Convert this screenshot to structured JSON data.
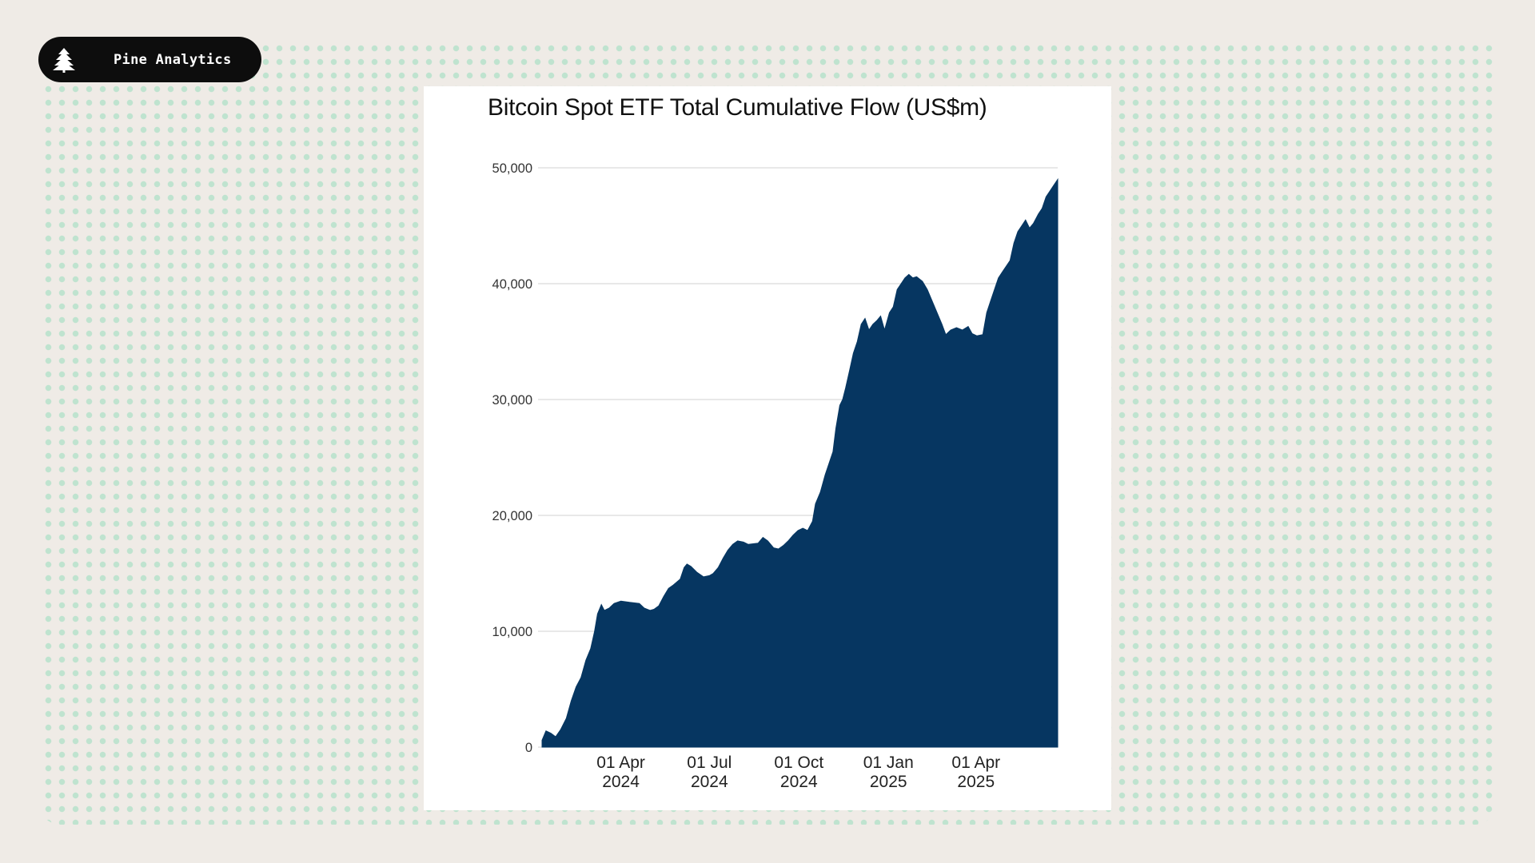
{
  "brand": {
    "name": "Pine Analytics",
    "icon": "pine-tree-icon",
    "background_color": "#0d0d0d",
    "text_color": "#ffffff"
  },
  "background": {
    "base_color": "#efebe6",
    "dot_color": "#bfe3cf"
  },
  "chart_data": {
    "type": "area",
    "title": "Bitcoin Spot ETF Total Cumulative Flow (US$m)",
    "xlabel": "",
    "ylabel": "",
    "series": [
      {
        "color": "#063661",
        "points": [
          [
            "2024-01-11",
            600
          ],
          [
            "2024-01-15",
            1400
          ],
          [
            "2024-01-20",
            1200
          ],
          [
            "2024-01-25",
            900
          ],
          [
            "2024-01-30",
            1500
          ],
          [
            "2024-02-05",
            2500
          ],
          [
            "2024-02-10",
            4000
          ],
          [
            "2024-02-15",
            5200
          ],
          [
            "2024-02-20",
            6000
          ],
          [
            "2024-02-25",
            7500
          ],
          [
            "2024-03-01",
            8500
          ],
          [
            "2024-03-05",
            10000
          ],
          [
            "2024-03-08",
            11500
          ],
          [
            "2024-03-12",
            12300
          ],
          [
            "2024-03-15",
            11800
          ],
          [
            "2024-03-20",
            12000
          ],
          [
            "2024-03-25",
            12400
          ],
          [
            "2024-04-01",
            12600
          ],
          [
            "2024-04-10",
            12500
          ],
          [
            "2024-04-20",
            12400
          ],
          [
            "2024-04-25",
            12000
          ],
          [
            "2024-05-01",
            11800
          ],
          [
            "2024-05-05",
            11900
          ],
          [
            "2024-05-10",
            12200
          ],
          [
            "2024-05-15",
            13000
          ],
          [
            "2024-05-20",
            13700
          ],
          [
            "2024-05-25",
            14000
          ],
          [
            "2024-06-01",
            14500
          ],
          [
            "2024-06-05",
            15500
          ],
          [
            "2024-06-08",
            15800
          ],
          [
            "2024-06-12",
            15600
          ],
          [
            "2024-06-18",
            15100
          ],
          [
            "2024-06-25",
            14700
          ],
          [
            "2024-07-01",
            14800
          ],
          [
            "2024-07-05",
            15000
          ],
          [
            "2024-07-10",
            15500
          ],
          [
            "2024-07-15",
            16300
          ],
          [
            "2024-07-20",
            17000
          ],
          [
            "2024-07-25",
            17500
          ],
          [
            "2024-07-30",
            17800
          ],
          [
            "2024-08-05",
            17700
          ],
          [
            "2024-08-10",
            17500
          ],
          [
            "2024-08-20",
            17600
          ],
          [
            "2024-08-25",
            18100
          ],
          [
            "2024-08-30",
            17800
          ],
          [
            "2024-09-05",
            17200
          ],
          [
            "2024-09-10",
            17100
          ],
          [
            "2024-09-15",
            17400
          ],
          [
            "2024-09-20",
            17800
          ],
          [
            "2024-09-25",
            18300
          ],
          [
            "2024-09-30",
            18700
          ],
          [
            "2024-10-05",
            18900
          ],
          [
            "2024-10-10",
            18700
          ],
          [
            "2024-10-15",
            19500
          ],
          [
            "2024-10-18",
            21000
          ],
          [
            "2024-10-23",
            22000
          ],
          [
            "2024-10-28",
            23500
          ],
          [
            "2024-11-01",
            24500
          ],
          [
            "2024-11-05",
            25500
          ],
          [
            "2024-11-08",
            27500
          ],
          [
            "2024-11-12",
            29500
          ],
          [
            "2024-11-15",
            30000
          ],
          [
            "2024-11-18",
            31000
          ],
          [
            "2024-11-22",
            32500
          ],
          [
            "2024-11-26",
            34000
          ],
          [
            "2024-11-30",
            35000
          ],
          [
            "2024-12-04",
            36500
          ],
          [
            "2024-12-08",
            37000
          ],
          [
            "2024-12-12",
            36000
          ],
          [
            "2024-12-16",
            36500
          ],
          [
            "2024-12-20",
            36800
          ],
          [
            "2024-12-24",
            37200
          ],
          [
            "2024-12-28",
            36000
          ],
          [
            "2025-01-02",
            37500
          ],
          [
            "2025-01-06",
            38000
          ],
          [
            "2025-01-10",
            39500
          ],
          [
            "2025-01-14",
            40000
          ],
          [
            "2025-01-18",
            40500
          ],
          [
            "2025-01-22",
            40800
          ],
          [
            "2025-01-26",
            40500
          ],
          [
            "2025-01-30",
            40600
          ],
          [
            "2025-02-05",
            40200
          ],
          [
            "2025-02-10",
            39500
          ],
          [
            "2025-02-15",
            38500
          ],
          [
            "2025-02-20",
            37500
          ],
          [
            "2025-02-25",
            36500
          ],
          [
            "2025-03-01",
            35600
          ],
          [
            "2025-03-06",
            36000
          ],
          [
            "2025-03-12",
            36200
          ],
          [
            "2025-03-18",
            36000
          ],
          [
            "2025-03-24",
            36300
          ],
          [
            "2025-03-28",
            35700
          ],
          [
            "2025-04-02",
            35500
          ],
          [
            "2025-04-08",
            35600
          ],
          [
            "2025-04-12",
            37500
          ],
          [
            "2025-04-16",
            38500
          ],
          [
            "2025-04-20",
            39500
          ],
          [
            "2025-04-24",
            40500
          ],
          [
            "2025-04-28",
            41000
          ],
          [
            "2025-05-02",
            41500
          ],
          [
            "2025-05-06",
            42000
          ],
          [
            "2025-05-10",
            43500
          ],
          [
            "2025-05-14",
            44500
          ],
          [
            "2025-05-18",
            45000
          ],
          [
            "2025-05-22",
            45500
          ],
          [
            "2025-05-26",
            44800
          ],
          [
            "2025-05-30",
            45200
          ],
          [
            "2025-06-04",
            46000
          ],
          [
            "2025-06-08",
            46500
          ],
          [
            "2025-06-12",
            47500
          ],
          [
            "2025-06-16",
            48000
          ],
          [
            "2025-06-20",
            48500
          ],
          [
            "2025-06-24",
            49000
          ]
        ]
      }
    ],
    "xlim": [
      "2024-01-11",
      "2025-06-24"
    ],
    "ylim": [
      0,
      50000
    ],
    "yticks": [
      0,
      10000,
      20000,
      30000,
      40000,
      50000
    ],
    "ytick_labels": [
      "0",
      "10,000",
      "20,000",
      "30,000",
      "40,000",
      "50,000"
    ],
    "xticks": [
      {
        "date": "2024-04-01",
        "line1": "01 Apr",
        "line2": "2024"
      },
      {
        "date": "2024-07-01",
        "line1": "01 Jul",
        "line2": "2024"
      },
      {
        "date": "2024-10-01",
        "line1": "01 Oct",
        "line2": "2024"
      },
      {
        "date": "2025-01-01",
        "line1": "01 Jan",
        "line2": "2025"
      },
      {
        "date": "2025-04-01",
        "line1": "01 Apr",
        "line2": "2025"
      }
    ],
    "grid": true,
    "legend": "none"
  }
}
